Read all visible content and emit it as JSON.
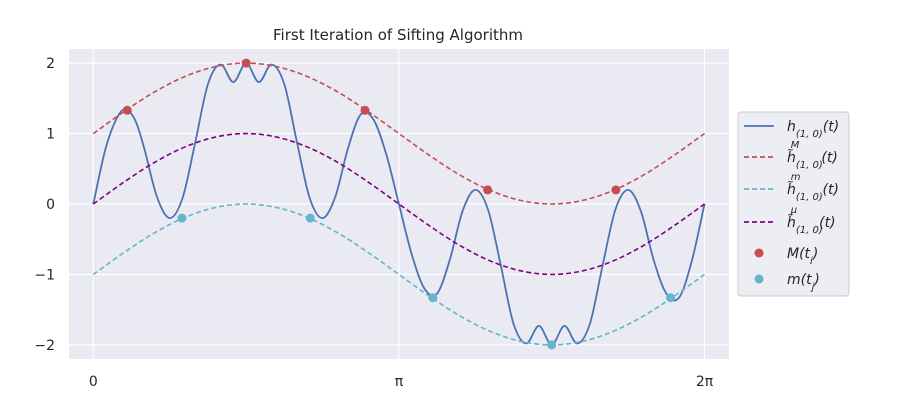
{
  "chart_data": {
    "type": "line",
    "title": "First Iteration of Sifting Algorithm",
    "xlabel": "",
    "ylabel": "",
    "xlim": [
      -0.25,
      6.535
    ],
    "ylim": [
      -2.2,
      2.2
    ],
    "grid": true,
    "legend_position": "right",
    "x_ticks": [
      {
        "value": 0,
        "label": "0"
      },
      {
        "value": 3.14159,
        "label": "π"
      },
      {
        "value": 6.28319,
        "label": "2π"
      }
    ],
    "y_ticks": [
      {
        "value": 2,
        "label": "2"
      },
      {
        "value": 1,
        "label": "1"
      },
      {
        "value": 0,
        "label": "0"
      },
      {
        "value": -1,
        "label": "−1"
      },
      {
        "value": -2,
        "label": "−2"
      }
    ],
    "series": [
      {
        "name": "h(1,0)(t)",
        "legend_html": "h<tspan baseline-shift='sub' font-size='10'>(1, 0)</tspan>(t)",
        "style": "solid",
        "color": "#4c72b0",
        "x": [
          0.0,
          0.1309,
          0.2618,
          0.3491,
          0.4363,
          0.5236,
          0.6545,
          0.7854,
          0.9163,
          1.0472,
          1.1781,
          1.309,
          1.4399,
          1.5708,
          1.7017,
          1.8326,
          1.9635,
          2.0944,
          2.2253,
          2.3562,
          2.4871,
          2.618,
          2.7489,
          2.8798,
          3.0107,
          3.1416,
          3.2725,
          3.4034,
          3.5343,
          3.6652,
          3.7961,
          3.927,
          4.0579,
          4.1888,
          4.3197,
          4.4506,
          4.5815,
          4.7124,
          4.8433,
          4.9742,
          5.1051,
          5.236,
          5.3669,
          5.4978,
          5.6287,
          5.7596,
          5.8905,
          6.0214,
          6.1523,
          6.2832
        ],
        "y": [
          0.0,
          0.81,
          1.27,
          1.33,
          1.17,
          0.79,
          0.1,
          -0.2,
          0.08,
          0.87,
          1.7,
          1.98,
          1.73,
          2.0,
          1.73,
          1.98,
          1.7,
          0.87,
          0.08,
          -0.2,
          0.1,
          0.79,
          1.27,
          1.2,
          0.71,
          0.0,
          -0.71,
          -1.2,
          -1.27,
          -0.79,
          -0.1,
          0.2,
          -0.08,
          -0.87,
          -1.7,
          -1.98,
          -1.73,
          -2.0,
          -1.73,
          -1.98,
          -1.7,
          -0.87,
          -0.08,
          0.2,
          -0.1,
          -0.79,
          -1.27,
          -1.33,
          -0.81,
          0.0
        ]
      },
      {
        "name": "h̃M(1,0)(t)",
        "legend_html": "h̃<tspan baseline-shift='sub' font-size='10'>(1, 0)</tspan><tspan dy='-14' dx='-32' font-size='10'>M</tspan><tspan dy='14' dx='22'>(t)</tspan>",
        "style": "dashed",
        "color": "#c44e52",
        "x": [
          0.0,
          0.3142,
          0.6283,
          0.9425,
          1.2566,
          1.5708,
          1.885,
          2.1991,
          2.5133,
          2.8274,
          3.1416,
          3.4558,
          3.7699,
          4.0841,
          4.3982,
          4.7124,
          5.0265,
          5.3407,
          5.6549,
          5.969,
          6.2832
        ],
        "y": [
          1.0,
          1.31,
          1.59,
          1.81,
          1.95,
          2.0,
          1.95,
          1.81,
          1.59,
          1.31,
          1.0,
          0.69,
          0.41,
          0.19,
          0.05,
          0.0,
          0.05,
          0.19,
          0.41,
          0.69,
          1.0
        ]
      },
      {
        "name": "h̃m(1,0)(t)",
        "legend_html": "h̃<tspan baseline-shift='sub' font-size='10'>(1, 0)</tspan><tspan dy='-14' dx='-32' font-size='10'>m</tspan><tspan dy='14' dx='22'>(t)</tspan>",
        "style": "dashed",
        "color": "#64b5cd",
        "x": [
          0.0,
          0.3142,
          0.6283,
          0.9425,
          1.2566,
          1.5708,
          1.885,
          2.1991,
          2.5133,
          2.8274,
          3.1416,
          3.4558,
          3.7699,
          4.0841,
          4.3982,
          4.7124,
          5.0265,
          5.3407,
          5.6549,
          5.969,
          6.2832
        ],
        "y": [
          -1.0,
          -0.69,
          -0.41,
          -0.19,
          -0.05,
          0.0,
          -0.05,
          -0.19,
          -0.41,
          -0.69,
          -1.0,
          -1.31,
          -1.59,
          -1.81,
          -1.95,
          -2.0,
          -1.95,
          -1.81,
          -1.59,
          -1.31,
          -1.0
        ]
      },
      {
        "name": "h̃μ(1,0)(t)",
        "legend_html": "h̃<tspan baseline-shift='sub' font-size='10'>(1, 0)</tspan><tspan dy='-14' dx='-32' font-size='10'>μ</tspan><tspan dy='14' dx='22'>(t)</tspan>",
        "style": "dashed",
        "color": "#800080",
        "x": [
          0.0,
          0.3142,
          0.6283,
          0.9425,
          1.2566,
          1.5708,
          1.885,
          2.1991,
          2.5133,
          2.8274,
          3.1416,
          3.4558,
          3.7699,
          4.0841,
          4.3982,
          4.7124,
          5.0265,
          5.3407,
          5.6549,
          5.969,
          6.2832
        ],
        "y": [
          0.0,
          0.31,
          0.59,
          0.81,
          0.95,
          1.0,
          0.95,
          0.81,
          0.59,
          0.31,
          0.0,
          -0.31,
          -0.59,
          -0.81,
          -0.95,
          -1.0,
          -0.95,
          -0.81,
          -0.59,
          -0.31,
          0.0
        ]
      }
    ],
    "points": [
      {
        "name": "M(ti)",
        "legend_html": "M(t<tspan baseline-shift='sub' font-size='10'>i</tspan>)",
        "color": "#c44e52",
        "x": [
          0.349,
          1.571,
          2.793,
          4.054,
          5.372
        ],
        "y": [
          1.33,
          2.0,
          1.33,
          0.2,
          0.2
        ]
      },
      {
        "name": "m(tj)",
        "legend_html": "m(t<tspan baseline-shift='sub' font-size='10'>j</tspan>)",
        "color": "#64b5cd",
        "x": [
          0.911,
          2.23,
          3.49,
          4.712,
          5.934
        ],
        "y": [
          -0.2,
          -0.2,
          -1.33,
          -2.0,
          -1.33
        ]
      }
    ]
  }
}
